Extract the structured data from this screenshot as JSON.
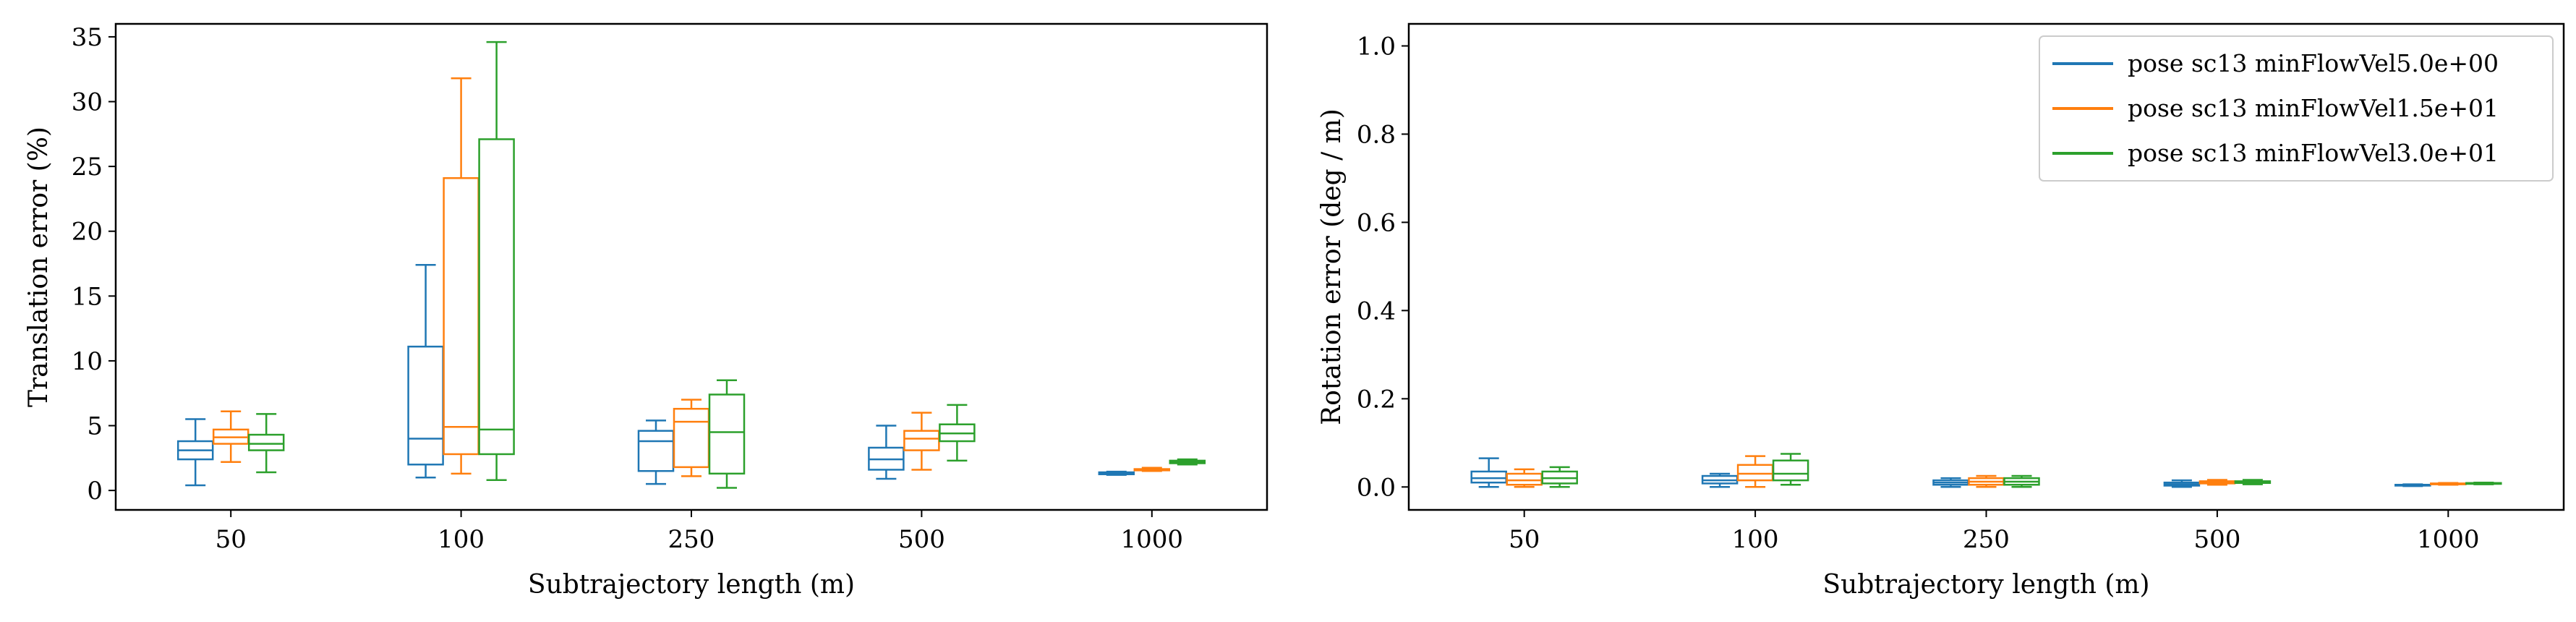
{
  "colors": {
    "series": [
      "#1f77b4",
      "#ff7f0e",
      "#2ca02c"
    ],
    "axis": "#000000",
    "background": "#ffffff",
    "legend_border": "#cccccc"
  },
  "chart_data": [
    {
      "type": "box",
      "xlabel": "Subtrajectory length (m)",
      "ylabel": "Translation error (%)",
      "categories": [
        "50",
        "100",
        "250",
        "500",
        "1000"
      ],
      "ylim": [
        -1.5,
        36
      ],
      "yticks": [
        0,
        5,
        10,
        15,
        20,
        25,
        30,
        35
      ],
      "ytick_labels": [
        "0",
        "5",
        "10",
        "15",
        "20",
        "25",
        "30",
        "35"
      ],
      "grid": false,
      "legend": false,
      "series": [
        {
          "name": "pose sc13 minFlowVel5.0e+00",
          "boxes": [
            {
              "whislo": 0.4,
              "q1": 2.4,
              "med": 3.1,
              "q3": 3.8,
              "whishi": 5.5
            },
            {
              "whislo": 1.0,
              "q1": 2.0,
              "med": 4.0,
              "q3": 11.1,
              "whishi": 17.4
            },
            {
              "whislo": 0.5,
              "q1": 1.5,
              "med": 3.8,
              "q3": 4.6,
              "whishi": 5.4
            },
            {
              "whislo": 0.9,
              "q1": 1.6,
              "med": 2.4,
              "q3": 3.3,
              "whishi": 5.0
            },
            {
              "whislo": 1.2,
              "q1": 1.25,
              "med": 1.3,
              "q3": 1.4,
              "whishi": 1.45
            }
          ]
        },
        {
          "name": "pose sc13 minFlowVel1.5e+01",
          "boxes": [
            {
              "whislo": 2.2,
              "q1": 3.6,
              "med": 4.1,
              "q3": 4.7,
              "whishi": 6.1
            },
            {
              "whislo": 1.3,
              "q1": 2.8,
              "med": 4.9,
              "q3": 24.1,
              "whishi": 31.8
            },
            {
              "whislo": 1.1,
              "q1": 1.8,
              "med": 5.3,
              "q3": 6.3,
              "whishi": 7.0
            },
            {
              "whislo": 1.6,
              "q1": 3.1,
              "med": 4.0,
              "q3": 4.6,
              "whishi": 6.0
            },
            {
              "whislo": 1.5,
              "q1": 1.55,
              "med": 1.6,
              "q3": 1.65,
              "whishi": 1.75
            }
          ]
        },
        {
          "name": "pose sc13 minFlowVel3.0e+01",
          "boxes": [
            {
              "whislo": 1.4,
              "q1": 3.1,
              "med": 3.6,
              "q3": 4.3,
              "whishi": 5.9
            },
            {
              "whislo": 0.8,
              "q1": 2.8,
              "med": 4.7,
              "q3": 27.1,
              "whishi": 34.6
            },
            {
              "whislo": 0.2,
              "q1": 1.3,
              "med": 4.5,
              "q3": 7.4,
              "whishi": 8.5
            },
            {
              "whislo": 2.3,
              "q1": 3.8,
              "med": 4.4,
              "q3": 5.1,
              "whishi": 6.6
            },
            {
              "whislo": 2.0,
              "q1": 2.1,
              "med": 2.2,
              "q3": 2.3,
              "whishi": 2.4
            }
          ]
        }
      ]
    },
    {
      "type": "box",
      "xlabel": "Subtrajectory length (m)",
      "ylabel": "Rotation error (deg / m)",
      "categories": [
        "50",
        "100",
        "250",
        "500",
        "1000"
      ],
      "ylim": [
        -0.052,
        1.05
      ],
      "yticks": [
        0.0,
        0.2,
        0.4,
        0.6,
        0.8,
        1.0
      ],
      "ytick_labels": [
        "0.0",
        "0.2",
        "0.4",
        "0.6",
        "0.8",
        "1.0"
      ],
      "grid": false,
      "legend": true,
      "legend_position": "top-right",
      "series": [
        {
          "name": "pose sc13 minFlowVel5.0e+00",
          "boxes": [
            {
              "whislo": 0.0,
              "q1": 0.01,
              "med": 0.02,
              "q3": 0.035,
              "whishi": 0.065
            },
            {
              "whislo": 0.0,
              "q1": 0.008,
              "med": 0.015,
              "q3": 0.025,
              "whishi": 0.03
            },
            {
              "whislo": 0.0,
              "q1": 0.005,
              "med": 0.01,
              "q3": 0.015,
              "whishi": 0.02
            },
            {
              "whislo": 0.0,
              "q1": 0.003,
              "med": 0.006,
              "q3": 0.01,
              "whishi": 0.015
            },
            {
              "whislo": 0.002,
              "q1": 0.003,
              "med": 0.004,
              "q3": 0.005,
              "whishi": 0.006
            }
          ]
        },
        {
          "name": "pose sc13 minFlowVel1.5e+01",
          "boxes": [
            {
              "whislo": 0.0,
              "q1": 0.005,
              "med": 0.015,
              "q3": 0.03,
              "whishi": 0.04
            },
            {
              "whislo": 0.0,
              "q1": 0.015,
              "med": 0.03,
              "q3": 0.05,
              "whishi": 0.07
            },
            {
              "whislo": 0.0,
              "q1": 0.005,
              "med": 0.012,
              "q3": 0.02,
              "whishi": 0.025
            },
            {
              "whislo": 0.005,
              "q1": 0.008,
              "med": 0.01,
              "q3": 0.013,
              "whishi": 0.016
            },
            {
              "whislo": 0.005,
              "q1": 0.006,
              "med": 0.007,
              "q3": 0.008,
              "whishi": 0.009
            }
          ]
        },
        {
          "name": "pose sc13 minFlowVel3.0e+01",
          "boxes": [
            {
              "whislo": 0.0,
              "q1": 0.008,
              "med": 0.02,
              "q3": 0.035,
              "whishi": 0.045
            },
            {
              "whislo": 0.005,
              "q1": 0.015,
              "med": 0.03,
              "q3": 0.06,
              "whishi": 0.075
            },
            {
              "whislo": 0.0,
              "q1": 0.005,
              "med": 0.012,
              "q3": 0.02,
              "whishi": 0.025
            },
            {
              "whislo": 0.006,
              "q1": 0.009,
              "med": 0.011,
              "q3": 0.013,
              "whishi": 0.016
            },
            {
              "whislo": 0.006,
              "q1": 0.007,
              "med": 0.008,
              "q3": 0.009,
              "whishi": 0.01
            }
          ]
        }
      ]
    }
  ]
}
